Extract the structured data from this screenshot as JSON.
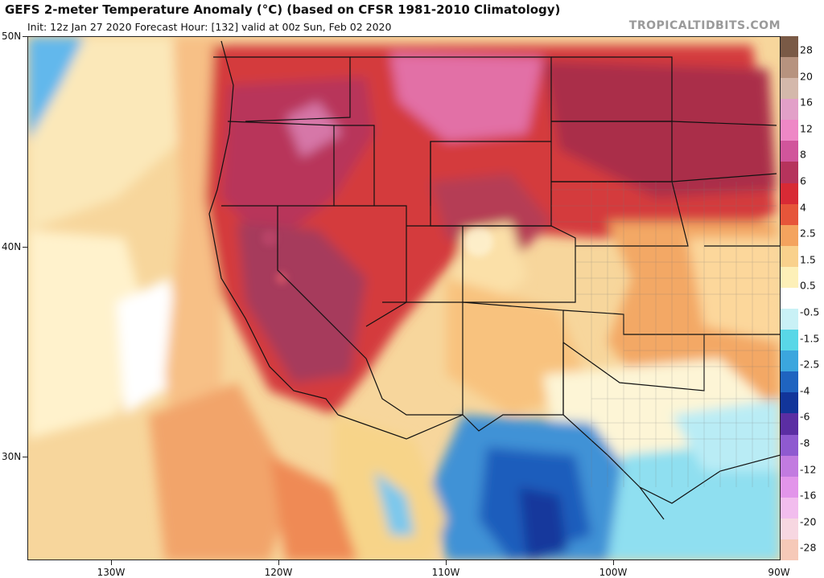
{
  "header": {
    "title": "GEFS 2-meter Temperature Anomaly (°C) (based on CFSR 1981-2010 Climatology)",
    "subtitle": "Init: 12z Jan 27 2020   Forecast Hour: [132]   valid at 00z Sun, Feb 02 2020",
    "brand": "TROPICALTIDBITS.COM"
  },
  "axes": {
    "lat_labels": [
      "50N",
      "40N",
      "30N"
    ],
    "lon_labels": [
      "130W",
      "120W",
      "110W",
      "100W",
      "90W"
    ]
  },
  "colorbar": {
    "labels": [
      "28",
      "20",
      "16",
      "12",
      "8",
      "6",
      "4",
      "2.5",
      "1.5",
      "0.5",
      "-0.5",
      "-1.5",
      "-2.5",
      "-4",
      "-6",
      "-8",
      "-12",
      "-16",
      "-20",
      "-28"
    ],
    "colors": [
      "#7a5a46",
      "#b7937f",
      "#d4b8ab",
      "#e2a0c8",
      "#ee88c6",
      "#d1559b",
      "#b6335c",
      "#d82a35",
      "#e6553a",
      "#f4a35e",
      "#f9d18c",
      "#fdf0b8",
      "#ffffff",
      "#c9f1f6",
      "#59d7e7",
      "#3ba6de",
      "#1f64c0",
      "#12359a",
      "#5b2ea3",
      "#8f5ad0",
      "#c27be0",
      "#e295ea",
      "#f2bdee",
      "#f7d7e1",
      "#f6c9b8"
    ]
  }
}
